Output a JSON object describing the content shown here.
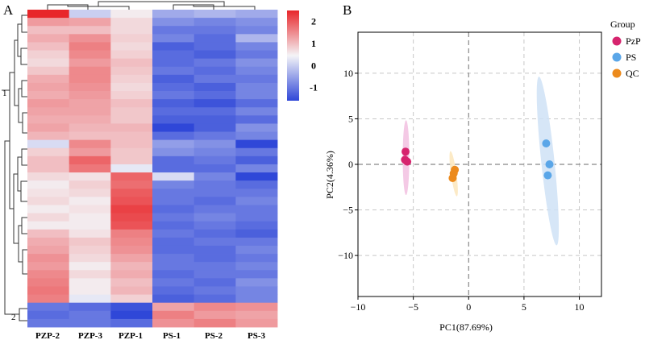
{
  "colors": {
    "high": "#e8262a",
    "mid": "#f4f4f7",
    "low": "#2f47d8",
    "PzP": "#d6246e",
    "PS": "#5aa6e8",
    "QC": "#ec8a1c",
    "ellipse_PzP": "#f2bfe0",
    "ellipse_PS": "#cfe2f6",
    "ellipse_QC": "#fbe6bc"
  },
  "chart_data": [
    {
      "type": "heatmap",
      "panel_label": "A",
      "columns": [
        "PZP-2",
        "PZP-3",
        "PZP-1",
        "PS-1",
        "PS-2",
        "PS-3"
      ],
      "colorbar": {
        "ticks": [
          "2",
          "1",
          "0",
          "-1"
        ],
        "tick_values": [
          2,
          1,
          0,
          -1
        ],
        "range": [
          -1.6,
          2.5
        ]
      },
      "row_clusters": [
        "1",
        "2"
      ],
      "values": [
        [
          2.4,
          -0.3,
          0.1,
          -0.6,
          -0.5,
          -0.6
        ],
        [
          1.0,
          0.9,
          0.3,
          -0.8,
          -0.9,
          -0.8
        ],
        [
          0.6,
          0.6,
          0.3,
          -1.0,
          -1.0,
          -0.9
        ],
        [
          0.8,
          1.1,
          0.4,
          -0.9,
          -1.1,
          -0.5
        ],
        [
          0.6,
          1.3,
          0.3,
          -1.2,
          -1.1,
          -0.9
        ],
        [
          0.4,
          1.2,
          0.4,
          -1.1,
          -1.2,
          -1.0
        ],
        [
          0.3,
          1.0,
          0.6,
          -1.1,
          -1.0,
          -0.8
        ],
        [
          0.5,
          1.2,
          0.5,
          -1.0,
          -1.1,
          -0.9
        ],
        [
          0.8,
          1.2,
          0.4,
          -1.2,
          -1.0,
          -1.0
        ],
        [
          0.9,
          1.1,
          0.3,
          -1.1,
          -1.2,
          -0.9
        ],
        [
          0.8,
          1.0,
          0.4,
          -1.0,
          -1.1,
          -0.9
        ],
        [
          1.0,
          0.9,
          0.6,
          -1.2,
          -1.3,
          -1.1
        ],
        [
          0.9,
          0.9,
          0.5,
          -1.1,
          -1.1,
          -0.9
        ],
        [
          0.8,
          0.8,
          0.5,
          -1.2,
          -1.2,
          -1.1
        ],
        [
          0.9,
          0.7,
          0.7,
          -1.6,
          -1.2,
          -0.8
        ],
        [
          0.7,
          0.6,
          0.6,
          -1.1,
          -1.0,
          -0.9
        ],
        [
          -0.2,
          1.2,
          0.6,
          -0.7,
          -0.8,
          -1.5
        ],
        [
          0.4,
          1.0,
          0.5,
          -0.8,
          -0.9,
          -1.0
        ],
        [
          0.6,
          1.6,
          0.5,
          -1.1,
          -1.0,
          -1.2
        ],
        [
          0.6,
          1.4,
          -0.1,
          -1.1,
          -1.1,
          -0.9
        ],
        [
          0.3,
          0.2,
          1.6,
          -0.2,
          -0.9,
          -1.5
        ],
        [
          0.1,
          0.4,
          1.5,
          -0.9,
          -1.0,
          -1.1
        ],
        [
          0.2,
          0.3,
          1.7,
          -1.0,
          -1.0,
          -1.0
        ],
        [
          0.3,
          0.1,
          1.8,
          -1.0,
          -1.1,
          -0.9
        ],
        [
          0.1,
          0.2,
          2.0,
          -1.1,
          -1.0,
          -1.0
        ],
        [
          0.3,
          0.1,
          1.9,
          -1.0,
          -0.9,
          -1.0
        ],
        [
          0.1,
          0.1,
          1.8,
          -1.1,
          -1.0,
          -1.1
        ],
        [
          0.6,
          0.2,
          1.3,
          -1.0,
          -1.1,
          -1.2
        ],
        [
          0.8,
          0.5,
          1.2,
          -1.1,
          -1.0,
          -1.0
        ],
        [
          0.9,
          0.4,
          1.1,
          -1.1,
          -1.1,
          -0.9
        ],
        [
          1.1,
          0.3,
          0.9,
          -1.0,
          -1.1,
          -1.0
        ],
        [
          1.0,
          0.1,
          0.7,
          -1.0,
          -1.0,
          -0.9
        ],
        [
          1.2,
          0.3,
          0.8,
          -1.1,
          -1.0,
          -1.0
        ],
        [
          1.3,
          0.1,
          0.6,
          -1.0,
          -1.1,
          -0.8
        ],
        [
          1.4,
          0.1,
          0.7,
          -1.1,
          -1.0,
          -0.9
        ],
        [
          1.3,
          -0.1,
          0.4,
          -1.2,
          -1.1,
          -0.9
        ],
        [
          -1.0,
          -1.1,
          -1.3,
          0.9,
          1.2,
          1.1
        ],
        [
          -1.1,
          -1.0,
          -1.4,
          1.3,
          1.0,
          0.9
        ],
        [
          -1.0,
          -1.0,
          -1.1,
          1.1,
          1.3,
          1.0
        ]
      ]
    },
    {
      "type": "scatter",
      "panel_label": "B",
      "xlabel": "PC1(87.69%)",
      "ylabel": "PC2(4.36%)",
      "xlim": [
        -10,
        12
      ],
      "ylim": [
        -14.5,
        14.5
      ],
      "xticks": [
        -10,
        -5,
        0,
        5,
        10
      ],
      "yticks": [
        10,
        5,
        0,
        -5,
        -10
      ],
      "grid": true,
      "legend": {
        "title": "Group",
        "position": "top-right"
      },
      "series": [
        {
          "name": "PzP",
          "x": [
            -5.7,
            -5.75,
            -5.55
          ],
          "y": [
            1.4,
            0.5,
            0.3
          ],
          "ellipse": {
            "cx": -5.66,
            "cy": 0.73,
            "rx": 0.3,
            "ry": 4.1,
            "angle": 0
          }
        },
        {
          "name": "PS",
          "x": [
            7.0,
            7.3,
            7.15
          ],
          "y": [
            2.3,
            0.0,
            -1.2
          ],
          "ellipse": {
            "cx": 7.15,
            "cy": 0.37,
            "rx": 0.6,
            "ry": 9.3,
            "angle": -6
          }
        },
        {
          "name": "QC",
          "x": [
            -1.25,
            -1.35,
            -1.45
          ],
          "y": [
            -0.6,
            -1.0,
            -1.5
          ],
          "ellipse": {
            "cx": -1.35,
            "cy": -1.03,
            "rx": 0.25,
            "ry": 2.5,
            "angle": -8
          }
        }
      ]
    }
  ]
}
